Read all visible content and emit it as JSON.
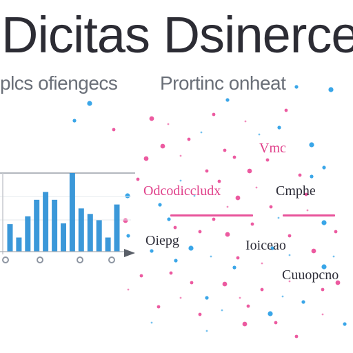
{
  "title": "Dicitas Dsinerce",
  "subtitle": {
    "left": "plcs ofiengecs",
    "right": "Prortinc onheat"
  },
  "labels": [
    {
      "id": "vmc",
      "text": "Vmc"
    },
    {
      "id": "odcodiccludx",
      "text": "Odcodiccludx"
    },
    {
      "id": "cmphe",
      "text": "Cmphe"
    },
    {
      "id": "oiepg",
      "text": "Oiepg"
    },
    {
      "id": "ioiceao",
      "text": "Ioiceao"
    },
    {
      "id": "cuuopcno",
      "text": "Cuuopcno"
    }
  ],
  "colors": {
    "bar_blue": "#2a8fd6",
    "accent_pink": "#e0408a",
    "dot_blue": "#3aa6e8",
    "dot_pink": "#ec5aa0"
  },
  "chart_data": {
    "type": "bar",
    "title": "",
    "xlabel": "",
    "ylabel": "",
    "grid": true,
    "ylim": [
      0,
      10
    ],
    "values": [
      3.5,
      1.8,
      4.5,
      6.6,
      7.6,
      6.6,
      3.6,
      10.0,
      5.5,
      4.8,
      4.0,
      1.8,
      6.0
    ]
  }
}
